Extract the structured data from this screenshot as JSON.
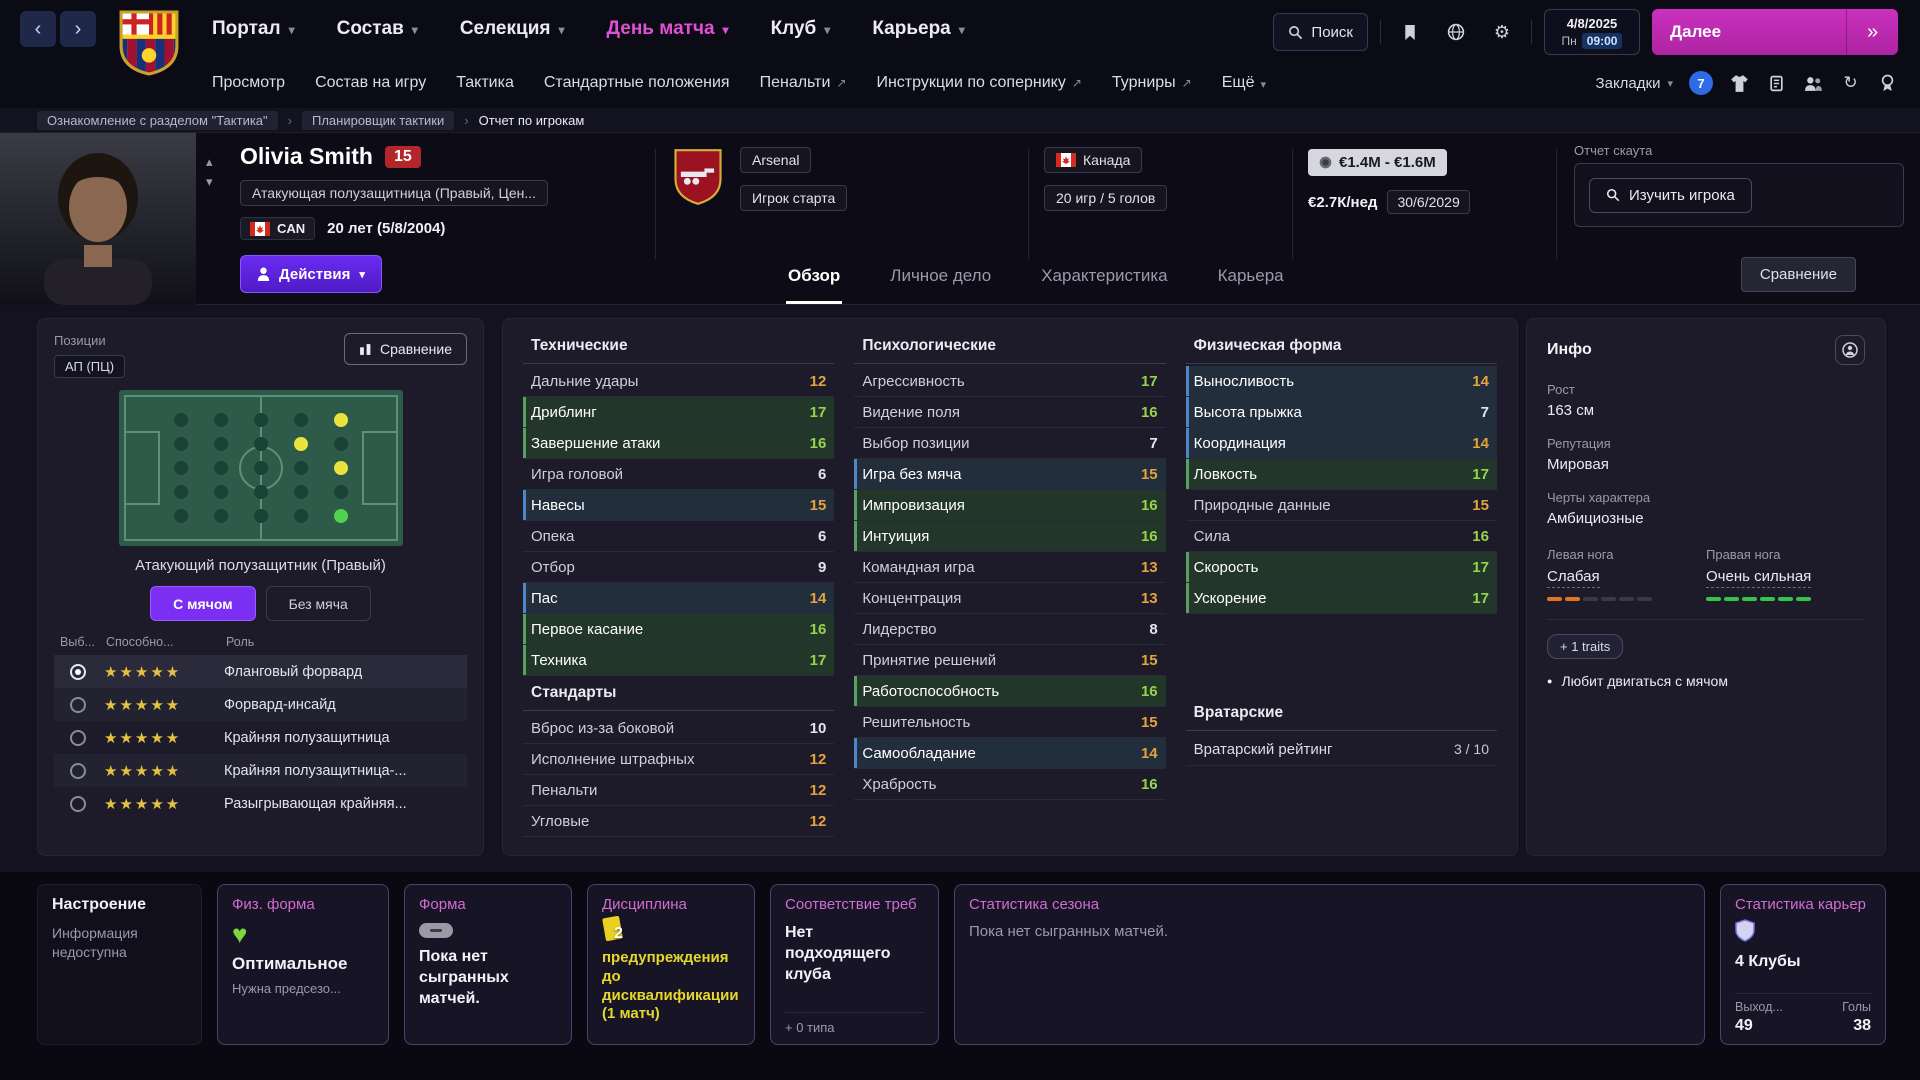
{
  "colors": {
    "accent_magenta": "#d935c8",
    "accent_purple": "#7b2ff2",
    "value_green": "#96d44c",
    "value_orange": "#e2a43b",
    "card_border": "#4e4170",
    "yellow_card": "#e8d21f"
  },
  "icons": {
    "chevron_down": "▾",
    "chevron_up": "▴",
    "back": "‹",
    "forward": "›",
    "fast_forward": "»",
    "external": "↗",
    "breadcrumb_sep": "›",
    "gear": "⚙",
    "sync": "↻",
    "star_row": "★★★★★",
    "bullet": "●",
    "heart": "♥",
    "dash": "–"
  },
  "topnav": {
    "menus": [
      {
        "label": "Портал",
        "active": false
      },
      {
        "label": "Состав",
        "active": false
      },
      {
        "label": "Селекция",
        "active": false
      },
      {
        "label": "День матча",
        "active": true
      },
      {
        "label": "Клуб",
        "active": false
      },
      {
        "label": "Карьера",
        "active": false
      }
    ],
    "search_placeholder": "Поиск",
    "date": "4/8/2025",
    "weekday": "Пн",
    "time": "09:00",
    "continue_label": "Далее",
    "subnav": [
      {
        "label": "Просмотр"
      },
      {
        "label": "Состав на игру"
      },
      {
        "label": "Тактика"
      },
      {
        "label": "Стандартные положения"
      },
      {
        "label": "Пенальти",
        "external": true
      },
      {
        "label": "Инструкции по сопернику",
        "external": true
      },
      {
        "label": "Турниры",
        "external": true
      },
      {
        "label": "Ещё",
        "dropdown": true
      }
    ],
    "bookmarks_label": "Закладки",
    "notification_count": "7"
  },
  "breadcrumb": [
    "Ознакомление с разделом \"Тактика\"",
    "Планировщик тактики",
    "Отчет по игрокам"
  ],
  "player": {
    "name": "Olivia Smith",
    "number": "15",
    "role": "Атакующая полузащитница (Правый, Цен...",
    "nation_code": "CAN",
    "age": "20 лет (5/8/2004)",
    "actions_label": "Действия",
    "club_name": "Arsenal",
    "squad_status": "Игрок старта",
    "nation_name": "Канада",
    "intl_record": "20 игр / 5 голов",
    "value": "€1.4M - €1.6M",
    "wage": "€2.7К/нед",
    "contract_end": "30/6/2029",
    "scout_title": "Отчет скаута",
    "scout_button": "Изучить игрока",
    "tabs": [
      {
        "label": "Обзор",
        "active": true
      },
      {
        "label": "Личное дело",
        "active": false
      },
      {
        "label": "Характеристика",
        "active": false
      },
      {
        "label": "Карьера",
        "active": false
      }
    ],
    "compare_label": "Сравнение"
  },
  "positions": {
    "title": "Позиции",
    "badge": "АП (ПЦ)",
    "compare_label": "Сравнение",
    "caption": "Атакующий полузащитник (Правый)",
    "with_ball_label": "С мячом",
    "without_ball_label": "Без мяча",
    "columns": [
      "Выб...",
      "Способно...",
      "Роль"
    ],
    "roles": [
      {
        "selected": true,
        "stars": 4,
        "label": "Фланговый форвард"
      },
      {
        "selected": false,
        "stars": 4,
        "label": "Форвард-инсайд"
      },
      {
        "selected": false,
        "stars": 4,
        "label": "Крайняя полузащитница"
      },
      {
        "selected": false,
        "stars": 4,
        "label": "Крайняя полузащитница-..."
      },
      {
        "selected": false,
        "stars": 3.5,
        "label": "Разыгрывающая крайняя..."
      }
    ]
  },
  "attributes": {
    "technical": {
      "title": "Технические",
      "items": [
        {
          "label": "Дальние удары",
          "value": 12,
          "key": false
        },
        {
          "label": "Дриблинг",
          "value": 17,
          "key": true
        },
        {
          "label": "Завершение атаки",
          "value": 16,
          "key": true
        },
        {
          "label": "Игра головой",
          "value": 6,
          "key": false
        },
        {
          "label": "Навесы",
          "value": 15,
          "key": true
        },
        {
          "label": "Опека",
          "value": 6,
          "key": false
        },
        {
          "label": "Отбор",
          "value": 9,
          "key": false
        },
        {
          "label": "Пас",
          "value": 14,
          "key": true
        },
        {
          "label": "Первое касание",
          "value": 16,
          "key": true
        },
        {
          "label": "Техника",
          "value": 17,
          "key": true
        }
      ]
    },
    "set_pieces": {
      "title": "Стандарты",
      "items": [
        {
          "label": "Вброс из-за боковой",
          "value": 10,
          "key": false
        },
        {
          "label": "Исполнение штрафных",
          "value": 12,
          "key": false
        },
        {
          "label": "Пенальти",
          "value": 12,
          "key": false
        },
        {
          "label": "Угловые",
          "value": 12,
          "key": false
        }
      ]
    },
    "mental": {
      "title": "Психологические",
      "items": [
        {
          "label": "Агрессивность",
          "value": 17,
          "key": false
        },
        {
          "label": "Видение поля",
          "value": 16,
          "key": false
        },
        {
          "label": "Выбор позиции",
          "value": 7,
          "key": false
        },
        {
          "label": "Игра без мяча",
          "value": 15,
          "key": true
        },
        {
          "label": "Импровизация",
          "value": 16,
          "key": true
        },
        {
          "label": "Интуиция",
          "value": 16,
          "key": true
        },
        {
          "label": "Командная игра",
          "value": 13,
          "key": false
        },
        {
          "label": "Концентрация",
          "value": 13,
          "key": false
        },
        {
          "label": "Лидерство",
          "value": 8,
          "key": false
        },
        {
          "label": "Принятие решений",
          "value": 15,
          "key": false
        },
        {
          "label": "Работоспособность",
          "value": 16,
          "key": true
        },
        {
          "label": "Решительность",
          "value": 15,
          "key": false
        },
        {
          "label": "Самообладание",
          "value": 14,
          "key": true
        },
        {
          "label": "Храбрость",
          "value": 16,
          "key": false
        }
      ]
    },
    "physical": {
      "title": "Физическая форма",
      "items": [
        {
          "label": "Выносливость",
          "value": 14,
          "key": true
        },
        {
          "label": "Высота прыжка",
          "value": 7,
          "key": true
        },
        {
          "label": "Координация",
          "value": 14,
          "key": true
        },
        {
          "label": "Ловкость",
          "value": 17,
          "key": true
        },
        {
          "label": "Природные данные",
          "value": 15,
          "key": false
        },
        {
          "label": "Сила",
          "value": 16,
          "key": false
        },
        {
          "label": "Скорость",
          "value": 17,
          "key": true
        },
        {
          "label": "Ускорение",
          "value": 17,
          "key": true
        }
      ]
    },
    "goalkeeping": {
      "title": "Вратарские",
      "label": "Вратарский рейтинг",
      "value": "3 / 10"
    }
  },
  "info": {
    "title": "Инфо",
    "fields": [
      {
        "label": "Рост",
        "value": "163 см"
      },
      {
        "label": "Репутация",
        "value": "Мировая"
      },
      {
        "label": "Черты характера",
        "value": "Амбициозные"
      }
    ],
    "left_foot_label": "Левая нога",
    "left_foot_value": "Слабая",
    "right_foot_label": "Правая нога",
    "right_foot_value": "Очень сильная",
    "traits_button": "+  1 traits",
    "trait_line": "Любит двигаться с мячом"
  },
  "cards": {
    "mood": {
      "title": "Настроение",
      "text": "Информация недоступна"
    },
    "fitness": {
      "title": "Физ. форма",
      "value": "Оптимальное",
      "note": "Нужна предсезо..."
    },
    "form": {
      "title": "Форма",
      "text": "Пока нет сыгранных матчей."
    },
    "discipline": {
      "title": "Дисциплина",
      "count": "2",
      "text": "предупреждения до дисквалификации (1 матч)"
    },
    "requirements": {
      "title": "Соответствие треб",
      "text": "Нет подходящего клуба",
      "note": "+ 0 типа"
    },
    "season": {
      "title": "Статистика сезона",
      "text": "Пока нет сыгранных матчей."
    },
    "career": {
      "title": "Статистика карьер",
      "clubs": "4 Клубы",
      "col_a": "Выход...",
      "col_b": "Голы",
      "val_a": "49",
      "val_b": "38"
    }
  }
}
